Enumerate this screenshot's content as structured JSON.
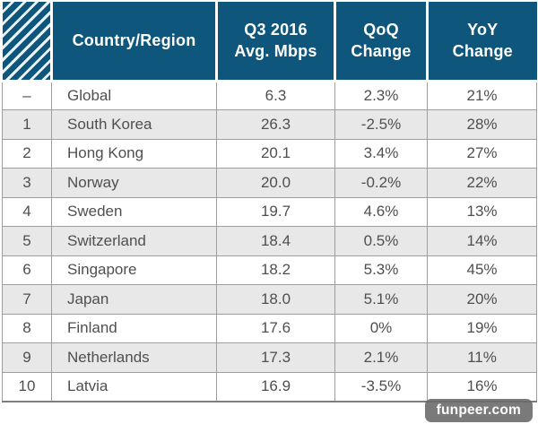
{
  "chart_data": {
    "type": "table",
    "columns": {
      "rank": "",
      "country": "Country/Region",
      "mbps": [
        "Q3 2016",
        "Avg. Mbps"
      ],
      "qoq": [
        "QoQ",
        "Change"
      ],
      "yoy": [
        "YoY",
        "Change"
      ]
    },
    "rows": [
      {
        "rank": "–",
        "country": "Global",
        "mbps": "6.3",
        "qoq": "2.3%",
        "yoy": "21%"
      },
      {
        "rank": "1",
        "country": "South Korea",
        "mbps": "26.3",
        "qoq": "-2.5%",
        "yoy": "28%"
      },
      {
        "rank": "2",
        "country": "Hong Kong",
        "mbps": "20.1",
        "qoq": "3.4%",
        "yoy": "27%"
      },
      {
        "rank": "3",
        "country": "Norway",
        "mbps": "20.0",
        "qoq": "-0.2%",
        "yoy": "22%"
      },
      {
        "rank": "4",
        "country": "Sweden",
        "mbps": "19.7",
        "qoq": "4.6%",
        "yoy": "13%"
      },
      {
        "rank": "5",
        "country": "Switzerland",
        "mbps": "18.4",
        "qoq": "0.5%",
        "yoy": "14%"
      },
      {
        "rank": "6",
        "country": "Singapore",
        "mbps": "18.2",
        "qoq": "5.3%",
        "yoy": "45%"
      },
      {
        "rank": "7",
        "country": "Japan",
        "mbps": "18.0",
        "qoq": "5.1%",
        "yoy": "20%"
      },
      {
        "rank": "8",
        "country": "Finland",
        "mbps": "17.6",
        "qoq": "0%",
        "yoy": "19%"
      },
      {
        "rank": "9",
        "country": "Netherlands",
        "mbps": "17.3",
        "qoq": "2.1%",
        "yoy": "11%"
      },
      {
        "rank": "10",
        "country": "Latvia",
        "mbps": "16.9",
        "qoq": "-3.5%",
        "yoy": "16%"
      }
    ]
  },
  "watermark": {
    "label": "funpeer.com"
  },
  "colors": {
    "header_bg": "#0e567b",
    "hatch_stripe": "#e9f1f6",
    "row_alt_bg": "#e8e8e8",
    "border_color": "#9e9e9e",
    "text_color": "#4f4f4f"
  }
}
